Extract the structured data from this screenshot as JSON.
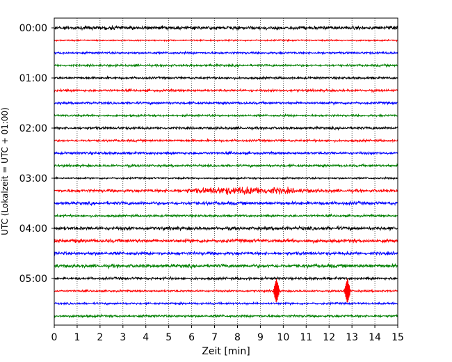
{
  "chart_data": {
    "type": "line",
    "title": "",
    "xlabel": "Zeit  [min]",
    "ylabel": "UTC (Lokalzeit = UTC + 01:00)",
    "xlim": [
      0,
      15
    ],
    "x_ticks": [
      0,
      1,
      2,
      3,
      4,
      5,
      6,
      7,
      8,
      9,
      10,
      11,
      12,
      13,
      14,
      15
    ],
    "x_tick_labels": [
      "0",
      "1",
      "2",
      "3",
      "4",
      "5",
      "6",
      "7",
      "8",
      "9",
      "10",
      "11",
      "12",
      "13",
      "14",
      "15"
    ],
    "y_tick_labels": [
      "00:00",
      "01:00",
      "02:00",
      "03:00",
      "04:00",
      "05:00"
    ],
    "vertical_grid": true,
    "grid_style": "dotted",
    "trace_minutes": 15,
    "traces_per_hour": 4,
    "trace_colors": [
      "#000000",
      "#ff0000",
      "#0000ff",
      "#008000"
    ],
    "series": [
      {
        "start": "00:00",
        "color": "#000000",
        "noise": 2.2,
        "events": [
          {
            "t": 2.4,
            "amp": 3,
            "width": 1.2
          }
        ]
      },
      {
        "start": "00:15",
        "color": "#ff0000",
        "noise": 0.9,
        "events": []
      },
      {
        "start": "00:30",
        "color": "#0000ff",
        "noise": 1.3,
        "events": []
      },
      {
        "start": "00:45",
        "color": "#008000",
        "noise": 1.4,
        "events": []
      },
      {
        "start": "01:00",
        "color": "#000000",
        "noise": 1.4,
        "events": []
      },
      {
        "start": "01:15",
        "color": "#ff0000",
        "noise": 1.5,
        "events": []
      },
      {
        "start": "01:30",
        "color": "#0000ff",
        "noise": 1.5,
        "events": []
      },
      {
        "start": "01:45",
        "color": "#008000",
        "noise": 1.3,
        "events": []
      },
      {
        "start": "02:00",
        "color": "#000000",
        "noise": 1.6,
        "events": []
      },
      {
        "start": "02:15",
        "color": "#ff0000",
        "noise": 1.4,
        "events": []
      },
      {
        "start": "02:30",
        "color": "#0000ff",
        "noise": 1.6,
        "events": []
      },
      {
        "start": "02:45",
        "color": "#008000",
        "noise": 1.5,
        "events": []
      },
      {
        "start": "03:00",
        "color": "#000000",
        "noise": 1.1,
        "events": []
      },
      {
        "start": "03:15",
        "color": "#ff0000",
        "noise": 1.8,
        "events": [
          {
            "t": 8.3,
            "amp": 8,
            "width": 4.5
          }
        ]
      },
      {
        "start": "03:30",
        "color": "#0000ff",
        "noise": 2.0,
        "events": []
      },
      {
        "start": "03:45",
        "color": "#008000",
        "noise": 1.4,
        "events": []
      },
      {
        "start": "04:00",
        "color": "#000000",
        "noise": 2.2,
        "events": []
      },
      {
        "start": "04:15",
        "color": "#ff0000",
        "noise": 2.2,
        "events": []
      },
      {
        "start": "04:30",
        "color": "#0000ff",
        "noise": 2.0,
        "events": []
      },
      {
        "start": "04:45",
        "color": "#008000",
        "noise": 2.2,
        "events": []
      },
      {
        "start": "05:00",
        "color": "#000000",
        "noise": 1.6,
        "events": []
      },
      {
        "start": "05:15",
        "color": "#ff0000",
        "noise": 1.2,
        "events": [
          {
            "t": 9.7,
            "amp": 18,
            "width": 0.15
          },
          {
            "t": 12.8,
            "amp": 18,
            "width": 0.15
          }
        ]
      },
      {
        "start": "05:30",
        "color": "#0000ff",
        "noise": 1.3,
        "events": []
      },
      {
        "start": "05:45",
        "color": "#008000",
        "noise": 1.5,
        "events": []
      }
    ]
  }
}
